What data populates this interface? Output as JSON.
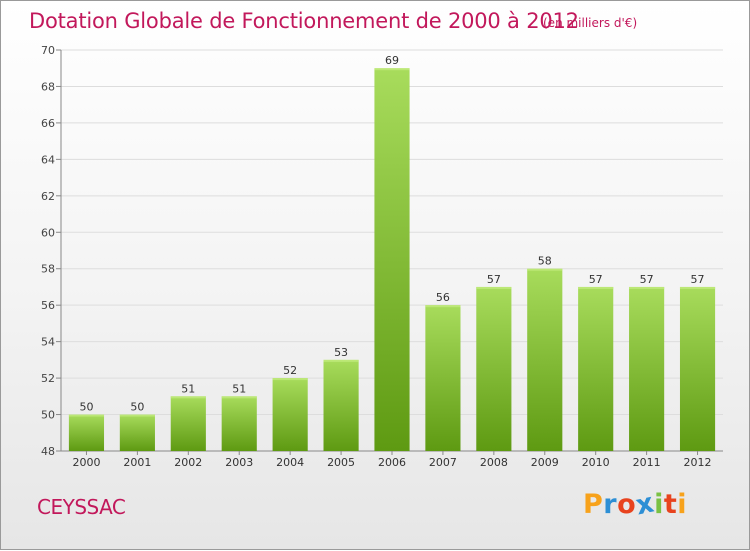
{
  "title": "Dotation Globale de Fonctionnement de 2000 à 2012",
  "subtitle": "(en milliers d'€)",
  "commune": "CEYSSAC",
  "logo": {
    "letters": [
      "P",
      "r",
      "o",
      "x",
      "i",
      "t",
      "i"
    ],
    "colors": [
      "#f7a21b",
      "#2d8fd5",
      "#e8431e",
      "#2d8fd5",
      "#7ac143",
      "#e8431e",
      "#f7a21b"
    ]
  },
  "colors": {
    "title": "#c2185b",
    "bar_top": "#a8dc5c",
    "bar_bottom": "#5e9a12",
    "grid": "#dddddd",
    "axis": "#888888"
  },
  "chart_data": {
    "type": "bar",
    "title": "Dotation Globale de Fonctionnement de 2000 à 2012",
    "subtitle": "(en milliers d'€)",
    "categories": [
      "2000",
      "2001",
      "2002",
      "2003",
      "2004",
      "2005",
      "2006",
      "2007",
      "2008",
      "2009",
      "2010",
      "2011",
      "2012"
    ],
    "values": [
      50,
      50,
      51,
      51,
      52,
      53,
      69,
      56,
      57,
      58,
      57,
      57,
      57
    ],
    "ylim": [
      48,
      70
    ],
    "yticks": [
      48,
      50,
      52,
      54,
      56,
      58,
      60,
      62,
      64,
      66,
      68,
      70
    ],
    "grid": "horizontal",
    "data_labels": true
  }
}
